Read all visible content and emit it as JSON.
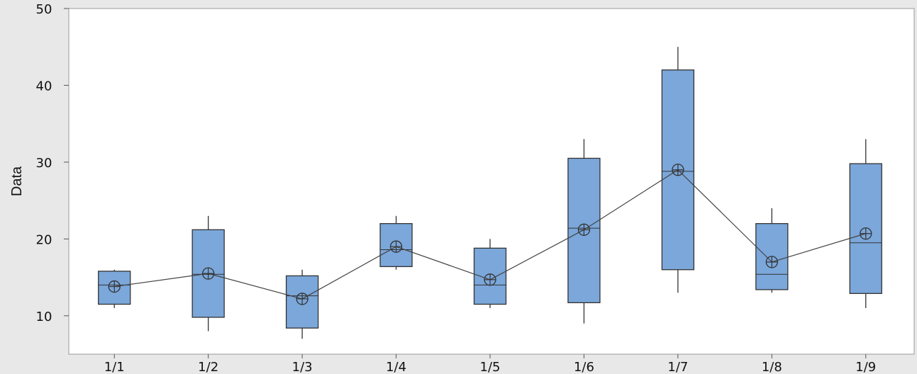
{
  "chart_data": {
    "type": "box",
    "title": "",
    "xlabel": "",
    "ylabel": "Data",
    "ylim": [
      5,
      50
    ],
    "yticks": [
      "10",
      "20",
      "30",
      "40",
      "50"
    ],
    "categories": [
      "1/1",
      "1/2",
      "1/3",
      "1/4",
      "1/5",
      "1/6",
      "1/7",
      "1/8",
      "1/9"
    ],
    "boxes": [
      {
        "whisker_low": 11,
        "q1": 11.5,
        "median": 14,
        "q3": 15.8,
        "whisker_high": 16,
        "mean": 13.8
      },
      {
        "whisker_low": 8,
        "q1": 9.8,
        "median": 15.4,
        "q3": 21.2,
        "whisker_high": 23,
        "mean": 15.5
      },
      {
        "whisker_low": 7,
        "q1": 8.4,
        "median": 12.6,
        "q3": 15.2,
        "whisker_high": 16,
        "mean": 12.2
      },
      {
        "whisker_low": 16,
        "q1": 16.4,
        "median": 18.6,
        "q3": 22,
        "whisker_high": 23,
        "mean": 19
      },
      {
        "whisker_low": 11,
        "q1": 11.5,
        "median": 14,
        "q3": 18.8,
        "whisker_high": 20,
        "mean": 14.7
      },
      {
        "whisker_low": 9,
        "q1": 11.7,
        "median": 21.4,
        "q3": 30.5,
        "whisker_high": 33,
        "mean": 21.2
      },
      {
        "whisker_low": 13,
        "q1": 16,
        "median": 28.8,
        "q3": 42,
        "whisker_high": 45,
        "mean": 29
      },
      {
        "whisker_low": 13,
        "q1": 13.4,
        "median": 15.4,
        "q3": 22,
        "whisker_high": 24,
        "mean": 17
      },
      {
        "whisker_low": 11,
        "q1": 12.9,
        "median": 19.5,
        "q3": 29.8,
        "whisker_high": 33,
        "mean": 20.7
      }
    ],
    "mean_connect_line": true,
    "grid": false,
    "colors": {
      "box_fill": "#7ba7da",
      "box_stroke": "#333333",
      "line": "#444444",
      "plot_bg": "#ffffff",
      "outer_bg": "#e8e8e8"
    }
  }
}
